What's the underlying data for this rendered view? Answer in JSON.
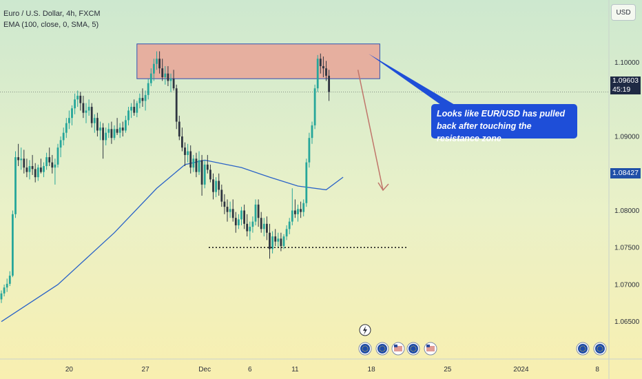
{
  "legend": {
    "symbol": "Euro / U.S. Dollar, 4h, FXCM",
    "indicator": "EMA (100, close, 0, SMA, 5)"
  },
  "currency": "USD",
  "last_price": "1.09603",
  "countdown": "45:19",
  "ema_value": "1.08427",
  "annotation": "Looks like EUR/USD has pulled back after touching the resistance zone",
  "colors": {
    "bull": "#26a69a",
    "bear": "#2e3440",
    "ema": "#2962c8",
    "zone_fill": "#e8a99a",
    "zone_border": "#3050b0",
    "arrow": "#c0756a",
    "callout": "#1e4ed8"
  },
  "chart_data": {
    "type": "candlestick",
    "title": "Euro / U.S. Dollar, 4h, FXCM",
    "ylim": [
      1.0605,
      1.1075
    ],
    "y_ticks": [
      "1.10000",
      "1.09000",
      "1.08000",
      "1.07500",
      "1.07000",
      "1.06500"
    ],
    "y_tick_values": [
      1.1,
      1.09,
      1.08,
      1.075,
      1.07,
      1.065
    ],
    "x_ticks": [
      "20",
      "27",
      "Dec",
      "6",
      "11",
      "18",
      "25",
      "2024",
      "8"
    ],
    "x_tick_index": [
      24,
      51,
      72,
      88,
      104,
      131,
      158,
      184,
      211
    ],
    "index_range": [
      0,
      214
    ],
    "candles": [
      [
        1.068,
        1.0692,
        1.0675,
        1.0688
      ],
      [
        1.0688,
        1.07,
        1.0684,
        1.0696
      ],
      [
        1.0696,
        1.0708,
        1.069,
        1.0701
      ],
      [
        1.0701,
        1.0718,
        1.0698,
        1.0712
      ],
      [
        1.0712,
        1.08,
        1.071,
        1.0795
      ],
      [
        1.0795,
        1.088,
        1.079,
        1.0872
      ],
      [
        1.0872,
        1.089,
        1.086,
        1.0868
      ],
      [
        1.0868,
        1.0885,
        1.0855,
        1.087
      ],
      [
        1.087,
        1.0882,
        1.085,
        1.0858
      ],
      [
        1.0858,
        1.087,
        1.0845,
        1.0852
      ],
      [
        1.0852,
        1.0868,
        1.0842,
        1.086
      ],
      [
        1.086,
        1.0875,
        1.0848,
        1.0856
      ],
      [
        1.0856,
        1.0864,
        1.0838,
        1.0845
      ],
      [
        1.0845,
        1.0862,
        1.084,
        1.0858
      ],
      [
        1.0858,
        1.087,
        1.085,
        1.0852
      ],
      [
        1.0852,
        1.0865,
        1.0845,
        1.086
      ],
      [
        1.086,
        1.0878,
        1.0855,
        1.0872
      ],
      [
        1.0872,
        1.0885,
        1.086,
        1.0865
      ],
      [
        1.0865,
        1.0875,
        1.085,
        1.0858
      ],
      [
        1.0858,
        1.087,
        1.0835,
        1.0862
      ],
      [
        1.0862,
        1.089,
        1.0858,
        1.0885
      ],
      [
        1.0885,
        1.09,
        1.0872,
        1.0895
      ],
      [
        1.0895,
        1.0912,
        1.0888,
        1.0905
      ],
      [
        1.0905,
        1.0925,
        1.0898,
        1.0918
      ],
      [
        1.0918,
        1.0935,
        1.091,
        1.0925
      ],
      [
        1.0925,
        1.0942,
        1.0915,
        1.0938
      ],
      [
        1.0938,
        1.0958,
        1.093,
        1.095
      ],
      [
        1.095,
        1.0962,
        1.094,
        1.0955
      ],
      [
        1.0955,
        1.096,
        1.0935,
        1.0945
      ],
      [
        1.0945,
        1.0955,
        1.0925,
        1.0932
      ],
      [
        1.0932,
        1.0945,
        1.0918,
        1.0935
      ],
      [
        1.0935,
        1.095,
        1.0928,
        1.094
      ],
      [
        1.094,
        1.0945,
        1.0912,
        1.0918
      ],
      [
        1.0918,
        1.093,
        1.0905,
        1.0925
      ],
      [
        1.0925,
        1.0932,
        1.09,
        1.0908
      ],
      [
        1.0908,
        1.092,
        1.0895,
        1.0912
      ],
      [
        1.0912,
        1.0918,
        1.087,
        1.0895
      ],
      [
        1.0895,
        1.0912,
        1.0888,
        1.0905
      ],
      [
        1.0905,
        1.0918,
        1.0898,
        1.091
      ],
      [
        1.091,
        1.092,
        1.089,
        1.0898
      ],
      [
        1.0898,
        1.0915,
        1.0895,
        1.091
      ],
      [
        1.091,
        1.0925,
        1.0902,
        1.0905
      ],
      [
        1.0905,
        1.0918,
        1.0898,
        1.0912
      ],
      [
        1.0912,
        1.092,
        1.09,
        1.0908
      ],
      [
        1.0908,
        1.0928,
        1.0905,
        1.0922
      ],
      [
        1.0922,
        1.094,
        1.0915,
        1.0935
      ],
      [
        1.0935,
        1.0945,
        1.0925,
        1.094
      ],
      [
        1.094,
        1.095,
        1.0928,
        1.0932
      ],
      [
        1.0932,
        1.0948,
        1.0926,
        1.0945
      ],
      [
        1.0945,
        1.0958,
        1.0938,
        1.0952
      ],
      [
        1.0952,
        1.0965,
        1.094,
        1.0948
      ],
      [
        1.0948,
        1.0962,
        1.0935,
        1.0956
      ],
      [
        1.0956,
        1.0978,
        1.095,
        1.0972
      ],
      [
        1.0972,
        1.0992,
        1.0968,
        1.0985
      ],
      [
        1.0985,
        1.1005,
        1.0975,
        1.0998
      ],
      [
        1.0998,
        1.1015,
        1.099,
        1.1005
      ],
      [
        1.1005,
        1.1015,
        1.0985,
        1.0992
      ],
      [
        1.0992,
        1.1005,
        1.0975,
        1.098
      ],
      [
        1.098,
        1.0995,
        1.097,
        1.0985
      ],
      [
        1.0985,
        1.0995,
        1.0968,
        1.0975
      ],
      [
        1.0975,
        1.0985,
        1.096,
        1.0978
      ],
      [
        1.0978,
        1.099,
        1.0962,
        1.0965
      ],
      [
        1.0965,
        1.097,
        1.091,
        1.092
      ],
      [
        1.092,
        1.0928,
        1.0895,
        1.09
      ],
      [
        1.09,
        1.0912,
        1.088,
        1.0885
      ],
      [
        1.0885,
        1.0892,
        1.086,
        1.0875
      ],
      [
        1.0875,
        1.089,
        1.0865,
        1.088
      ],
      [
        1.088,
        1.0888,
        1.085,
        1.0858
      ],
      [
        1.0858,
        1.0875,
        1.0852,
        1.087
      ],
      [
        1.087,
        1.0878,
        1.0845,
        1.0852
      ],
      [
        1.0852,
        1.088,
        1.0848,
        1.0868
      ],
      [
        1.0868,
        1.0875,
        1.082,
        1.0835
      ],
      [
        1.0835,
        1.0868,
        1.083,
        1.0862
      ],
      [
        1.0862,
        1.0875,
        1.085,
        1.0855
      ],
      [
        1.0855,
        1.0862,
        1.0838,
        1.0842
      ],
      [
        1.0842,
        1.085,
        1.0815,
        1.0825
      ],
      [
        1.0825,
        1.0845,
        1.0818,
        1.084
      ],
      [
        1.084,
        1.085,
        1.082,
        1.0828
      ],
      [
        1.0828,
        1.0835,
        1.0805,
        1.0812
      ],
      [
        1.0812,
        1.0822,
        1.0795,
        1.0805
      ],
      [
        1.0805,
        1.0815,
        1.0785,
        1.0798
      ],
      [
        1.0798,
        1.0812,
        1.079,
        1.0802
      ],
      [
        1.0802,
        1.0815,
        1.0785,
        1.079
      ],
      [
        1.079,
        1.0798,
        1.077,
        1.078
      ],
      [
        1.078,
        1.0795,
        1.0775,
        1.0788
      ],
      [
        1.0788,
        1.0805,
        1.078,
        1.08
      ],
      [
        1.08,
        1.0808,
        1.0775,
        1.0782
      ],
      [
        1.0782,
        1.0795,
        1.0765,
        1.0772
      ],
      [
        1.0772,
        1.0785,
        1.076,
        1.0778
      ],
      [
        1.0778,
        1.0792,
        1.077,
        1.0785
      ],
      [
        1.0785,
        1.0815,
        1.078,
        1.0808
      ],
      [
        1.0808,
        1.0815,
        1.0778,
        1.079
      ],
      [
        1.079,
        1.0798,
        1.077,
        1.0775
      ],
      [
        1.0775,
        1.079,
        1.0765,
        1.0782
      ],
      [
        1.0782,
        1.0792,
        1.076,
        1.077
      ],
      [
        1.077,
        1.0782,
        1.0735,
        1.0748
      ],
      [
        1.0748,
        1.0772,
        1.0742,
        1.0765
      ],
      [
        1.0765,
        1.0775,
        1.0752,
        1.0758
      ],
      [
        1.0758,
        1.077,
        1.075,
        1.0762
      ],
      [
        1.0762,
        1.077,
        1.0745,
        1.0752
      ],
      [
        1.0752,
        1.0768,
        1.0748,
        1.0765
      ],
      [
        1.0765,
        1.078,
        1.076,
        1.0775
      ],
      [
        1.0775,
        1.079,
        1.0768,
        1.0785
      ],
      [
        1.0785,
        1.083,
        1.078,
        1.08
      ],
      [
        1.08,
        1.0815,
        1.079,
        1.0795
      ],
      [
        1.0795,
        1.0808,
        1.0785,
        1.0802
      ],
      [
        1.0802,
        1.0812,
        1.079,
        1.0798
      ],
      [
        1.0798,
        1.0815,
        1.0792,
        1.081
      ],
      [
        1.081,
        1.087,
        1.0805,
        1.0865
      ],
      [
        1.0865,
        1.0905,
        1.0858,
        1.0898
      ],
      [
        1.0898,
        1.092,
        1.089,
        1.0915
      ],
      [
        1.0915,
        1.097,
        1.091,
        1.0965
      ],
      [
        1.0965,
        1.101,
        1.096,
        1.1005
      ],
      [
        1.1005,
        1.1012,
        1.0985,
        1.0995
      ],
      [
        1.0995,
        1.1008,
        1.098,
        1.0992
      ],
      [
        1.0992,
        1.1002,
        1.0975,
        1.0982
      ],
      [
        1.0982,
        1.099,
        1.0948,
        1.096
      ]
    ],
    "ema_label": "EMA (100, close, 0, SMA, 5)",
    "ema_points": [
      [
        0,
        1.065
      ],
      [
        20,
        1.07
      ],
      [
        40,
        1.077
      ],
      [
        55,
        1.083
      ],
      [
        65,
        1.0862
      ],
      [
        72,
        1.0868
      ],
      [
        85,
        1.0858
      ],
      [
        95,
        1.0845
      ],
      [
        105,
        1.0833
      ],
      [
        115,
        1.0828
      ],
      [
        121,
        1.0845
      ]
    ],
    "resistance_zone": [
      1.0978,
      1.1025
    ],
    "support_line": 1.075,
    "price_line": 1.09603
  }
}
